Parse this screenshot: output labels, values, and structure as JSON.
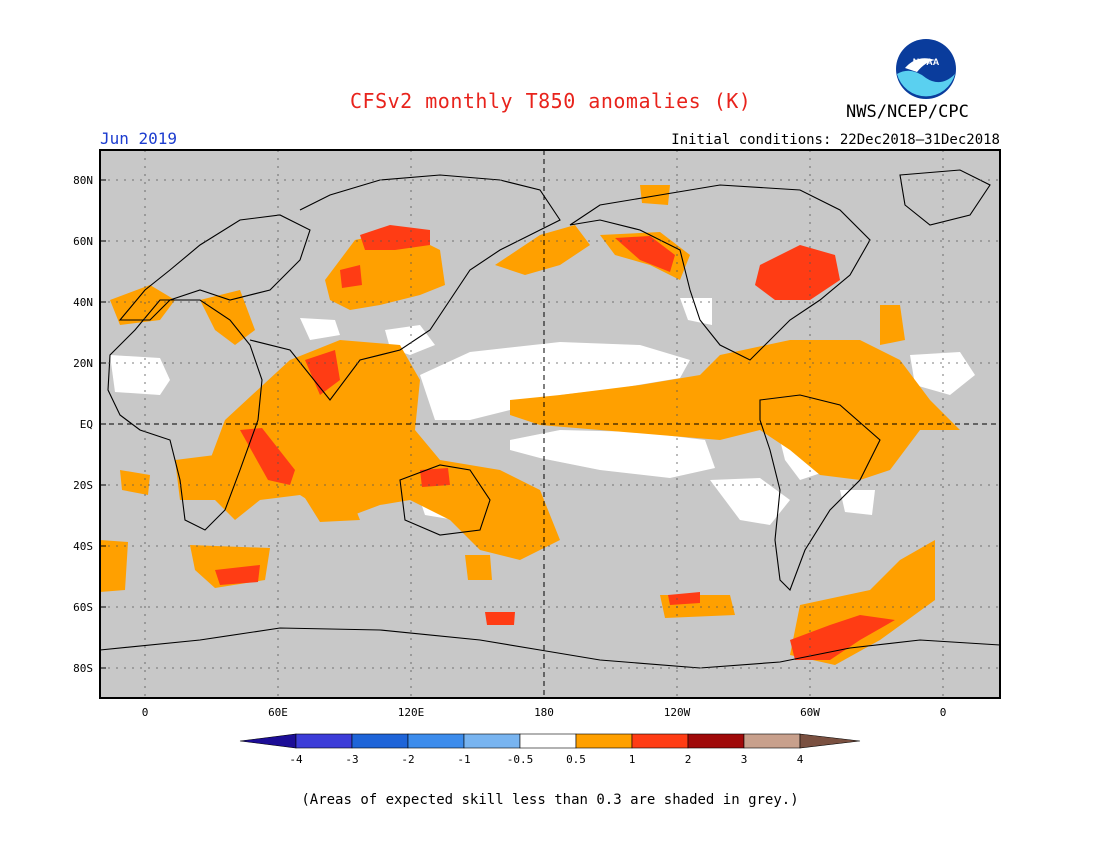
{
  "header": {
    "title": "CFSv2 monthly T850 anomalies (K)",
    "org": "NWS/NCEP/CPC",
    "logo_text": "NOAA",
    "month": "Jun 2019",
    "initial_conditions": "Initial conditions: 22Dec2018–31Dec2018"
  },
  "map": {
    "lat_labels": [
      "80N",
      "60N",
      "40N",
      "20N",
      "EQ",
      "20S",
      "40S",
      "60S",
      "80S"
    ],
    "lon_labels": [
      "0",
      "60E",
      "120E",
      "180",
      "120W",
      "60W",
      "0"
    ],
    "colors": {
      "grey_low_skill": "#c8c8c8",
      "land_outline": "#000000"
    }
  },
  "colorbar": {
    "labels": [
      "-4",
      "-3",
      "-2",
      "-1",
      "-0.5",
      "0.5",
      "1",
      "2",
      "3",
      "4"
    ],
    "colors": [
      "#1c0d96",
      "#3c3cd8",
      "#1e64d8",
      "#3c8cec",
      "#78b4f0",
      "#ffffff",
      "#ffa000",
      "#ff3c14",
      "#a00a0a",
      "#c8a08c",
      "#7a5040"
    ]
  },
  "footer": {
    "note": "(Areas of expected skill less than 0.3 are shaded in grey.)"
  }
}
